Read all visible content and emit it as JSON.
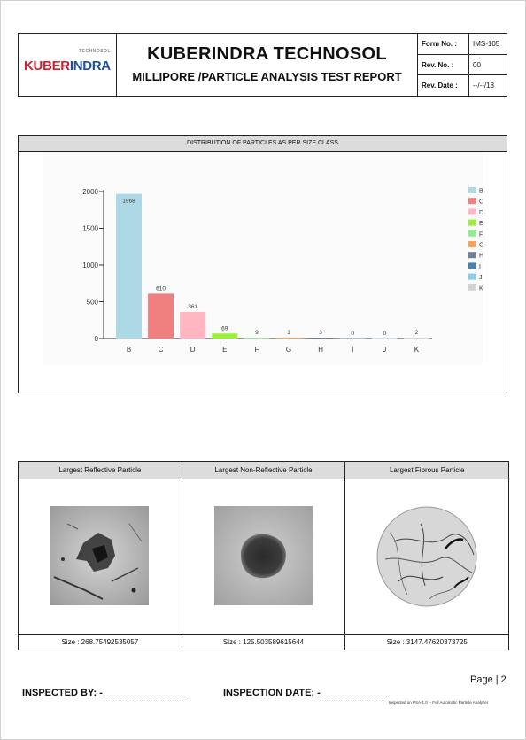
{
  "header": {
    "logo_small": "TECHNOSOL",
    "logo_part1": "KUBER",
    "logo_part2": "INDRA",
    "company": "KUBERINDRA TECHNOSOL",
    "report_title": "MILLIPORE /PARTICLE ANALYSIS TEST REPORT",
    "form_no_label": "Form No. :",
    "form_no_value": "IMS-105",
    "rev_no_label": "Rev. No. :",
    "rev_no_value": "00",
    "rev_date_label": "Rev. Date :",
    "rev_date_value": "--/--/18"
  },
  "chart_panel": {
    "title": "DISTRIBUTION OF PARTICLES AS PER SIZE CLASS"
  },
  "chart_data": {
    "type": "bar",
    "title": "",
    "categories": [
      "B",
      "C",
      "D",
      "E",
      "F",
      "G",
      "H",
      "I",
      "J",
      "K"
    ],
    "values": [
      1968,
      610,
      361,
      69,
      9,
      1,
      3,
      0,
      0,
      2
    ],
    "data_labels": [
      "1968",
      "610",
      "361",
      "69",
      "9",
      "1",
      "3",
      "0",
      "0",
      "2"
    ],
    "colors": [
      "#add8e6",
      "#f08080",
      "#ffb6c1",
      "#9aee3c",
      "#90ee90",
      "#f4a460",
      "#708090",
      "#4682b4",
      "#87ceeb",
      "#d3d3d3"
    ],
    "yticks": [
      "2000",
      "1500",
      "1000",
      "500",
      "0"
    ],
    "ylim": [
      0,
      2000
    ],
    "legend_position": "right",
    "grid": false
  },
  "particles": [
    {
      "header": "Largest Reflective Particle",
      "size": "Size : 268.75492535057"
    },
    {
      "header": "Largest Non-Reflective Particle",
      "size": "Size : 125.503589615644"
    },
    {
      "header": "Largest Fibrous Particle",
      "size": "Size : 3147.47620373725"
    }
  ],
  "footer": {
    "page": "Page | 2",
    "inspected_by": "INSPECTED BY: -",
    "inspection_date": "INSPECTION DATE: -",
    "note": "Inspected on PSA-1.0 -- Full Automatic Particle Analyzer"
  }
}
